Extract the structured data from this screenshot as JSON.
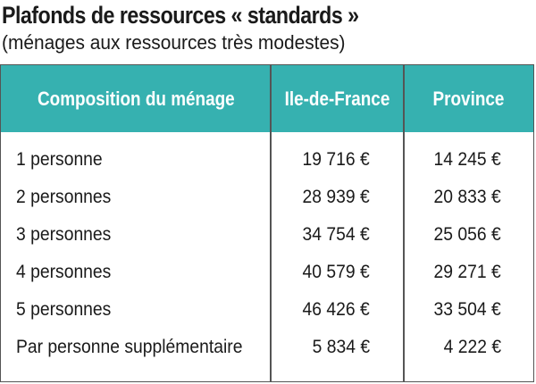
{
  "title": "Plafonds de ressources « standards »",
  "subtitle": "(ménages aux ressources très modestes)",
  "table": {
    "header_bg": "#36b1b0",
    "columns": [
      "Composition du ménage",
      "Ile-de-France",
      "Province"
    ],
    "rows": [
      {
        "label": "1 personne",
        "idf": "19 716 €",
        "province": "14 245 €"
      },
      {
        "label": "2 personnes",
        "idf": "28 939 €",
        "province": "20 833 €"
      },
      {
        "label": "3 personnes",
        "idf": "34 754 €",
        "province": "25 056 €"
      },
      {
        "label": "4 personnes",
        "idf": "40 579 €",
        "province": "29 271 €"
      },
      {
        "label": "5 personnes",
        "idf": "46 426 €",
        "province": "33 504 €"
      },
      {
        "label": "Par personne supplémentaire",
        "idf": "5 834 €",
        "province": "4 222 €"
      }
    ]
  }
}
